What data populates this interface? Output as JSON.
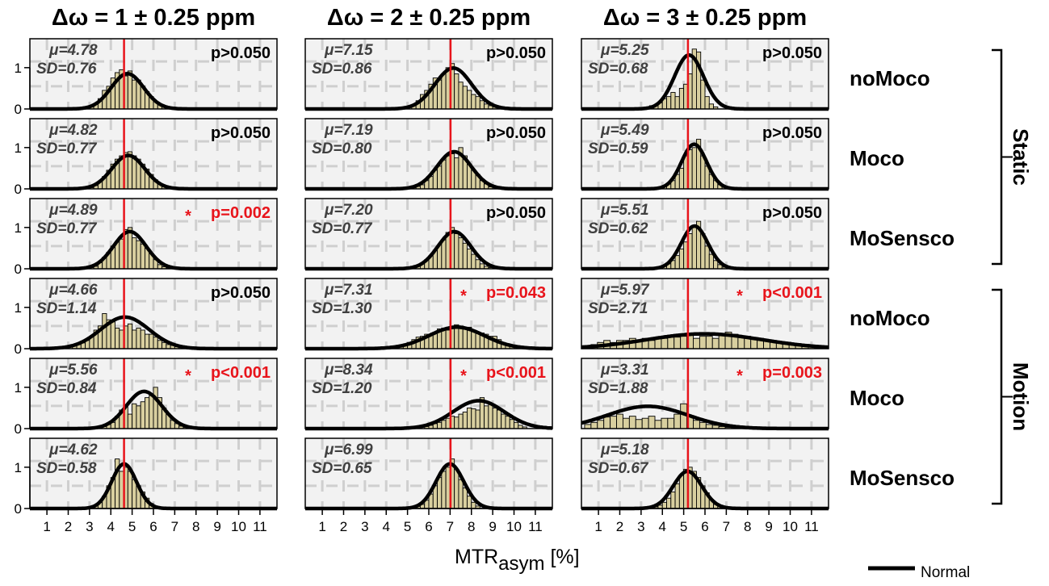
{
  "chart_data": {
    "type": "bar",
    "xlabel_main": "MTR",
    "xlabel_sub": "asym",
    "xlabel_unit": " [%]",
    "legend": "Normal",
    "x_ticks": [
      "1",
      "2",
      "3",
      "4",
      "5",
      "6",
      "7",
      "8",
      "9",
      "10",
      "11"
    ],
    "y_ticks": [
      "0",
      "1"
    ],
    "xlim": [
      0.2,
      11.8
    ],
    "ylim": [
      0,
      1.7
    ],
    "columns": [
      {
        "title": "Δω = 1 ± 0.25 ppm",
        "reference": 4.62
      },
      {
        "title": "Δω = 2 ± 0.25 ppm",
        "reference": 7.02
      },
      {
        "title": "Δω = 3 ± 0.25 ppm",
        "reference": 5.2
      }
    ],
    "rows": [
      {
        "label": "noMoco"
      },
      {
        "label": "Moco"
      },
      {
        "label": "MoSensco"
      },
      {
        "label": "noMoco"
      },
      {
        "label": "Moco"
      },
      {
        "label": "MoSensco"
      }
    ],
    "groups": [
      {
        "label": "Static",
        "rows": [
          0,
          2
        ]
      },
      {
        "label": "Motion",
        "rows": [
          3,
          5
        ]
      }
    ],
    "panels": [
      {
        "col": 0,
        "row": 0,
        "mu_text": "μ=4.78",
        "sd_text": "SD=0.76",
        "mu": 4.78,
        "sd": 0.76,
        "p_text": "p>0.050",
        "significant": false,
        "bins": [
          3.1,
          3.3,
          3.5,
          3.7,
          3.9,
          4.1,
          4.3,
          4.5,
          4.7,
          4.9,
          5.1,
          5.3,
          5.5,
          5.7,
          5.9,
          6.1,
          6.3,
          6.5,
          6.7
        ],
        "heights": [
          0.05,
          0.12,
          0.25,
          0.45,
          0.55,
          0.75,
          0.88,
          0.95,
          0.8,
          0.92,
          0.7,
          0.7,
          0.55,
          0.42,
          0.3,
          0.18,
          0.1,
          0.06,
          0.03
        ]
      },
      {
        "col": 1,
        "row": 0,
        "mu_text": "μ=7.15",
        "sd_text": "SD=0.86",
        "mu": 7.15,
        "sd": 0.86,
        "p_text": "p>0.050",
        "significant": false,
        "bins": [
          5.1,
          5.3,
          5.5,
          5.7,
          5.9,
          6.1,
          6.3,
          6.5,
          6.7,
          6.9,
          7.1,
          7.3,
          7.5,
          7.7,
          7.9,
          8.1,
          8.3,
          8.5,
          8.7,
          8.9,
          9.1
        ],
        "heights": [
          0.05,
          0.1,
          0.2,
          0.35,
          0.45,
          0.6,
          0.75,
          0.7,
          0.85,
          1.0,
          1.1,
          0.85,
          0.65,
          0.55,
          0.45,
          0.35,
          0.3,
          0.2,
          0.12,
          0.08,
          0.05
        ]
      },
      {
        "col": 2,
        "row": 0,
        "mu_text": "μ=5.25",
        "sd_text": "SD=0.68",
        "mu": 5.25,
        "sd": 0.68,
        "p_text": "p>0.050",
        "significant": false,
        "bins": [
          3.3,
          3.5,
          3.7,
          3.9,
          4.1,
          4.3,
          4.5,
          4.7,
          4.9,
          5.1,
          5.3,
          5.5,
          5.7,
          5.9,
          6.1,
          6.3,
          6.5
        ],
        "heights": [
          0.05,
          0.08,
          0.1,
          0.15,
          0.25,
          0.3,
          0.4,
          0.3,
          0.5,
          0.6,
          0.85,
          1.45,
          1.38,
          0.7,
          0.3,
          0.12,
          0.05
        ]
      },
      {
        "col": 0,
        "row": 1,
        "mu_text": "μ=4.82",
        "sd_text": "SD=0.77",
        "mu": 4.82,
        "sd": 0.77,
        "p_text": "p>0.050",
        "significant": false,
        "bins": [
          3.1,
          3.3,
          3.5,
          3.7,
          3.9,
          4.1,
          4.3,
          4.5,
          4.7,
          4.9,
          5.1,
          5.3,
          5.5,
          5.7,
          5.9,
          6.1,
          6.3,
          6.5,
          6.7
        ],
        "heights": [
          0.03,
          0.08,
          0.18,
          0.3,
          0.45,
          0.6,
          0.72,
          0.8,
          0.88,
          0.9,
          0.8,
          0.72,
          0.6,
          0.48,
          0.35,
          0.22,
          0.12,
          0.06,
          0.03
        ]
      },
      {
        "col": 1,
        "row": 1,
        "mu_text": "μ=7.19",
        "sd_text": "SD=0.80",
        "mu": 7.19,
        "sd": 0.8,
        "p_text": "p>0.050",
        "significant": false,
        "bins": [
          5.3,
          5.5,
          5.7,
          5.9,
          6.1,
          6.3,
          6.5,
          6.7,
          6.9,
          7.1,
          7.3,
          7.5,
          7.7,
          7.9,
          8.1,
          8.3,
          8.5,
          8.7,
          8.9
        ],
        "heights": [
          0.03,
          0.06,
          0.1,
          0.2,
          0.3,
          0.45,
          0.55,
          0.7,
          0.8,
          0.85,
          0.75,
          1.0,
          0.8,
          0.6,
          0.45,
          0.35,
          0.2,
          0.12,
          0.05
        ]
      },
      {
        "col": 2,
        "row": 1,
        "mu_text": "μ=5.49",
        "sd_text": "SD=0.59",
        "mu": 5.49,
        "sd": 0.59,
        "p_text": "p>0.050",
        "significant": false,
        "bins": [
          3.9,
          4.1,
          4.3,
          4.5,
          4.7,
          4.9,
          5.1,
          5.3,
          5.5,
          5.7,
          5.9,
          6.1,
          6.3,
          6.5,
          6.7,
          6.9
        ],
        "heights": [
          0.03,
          0.06,
          0.12,
          0.2,
          0.35,
          0.5,
          0.8,
          0.95,
          1.0,
          1.2,
          0.8,
          0.55,
          0.35,
          0.2,
          0.1,
          0.04
        ]
      },
      {
        "col": 0,
        "row": 2,
        "mu_text": "μ=4.89",
        "sd_text": "SD=0.77",
        "mu": 4.89,
        "sd": 0.77,
        "p_text": "p=0.002",
        "significant": true,
        "bins": [
          3.1,
          3.3,
          3.5,
          3.7,
          3.9,
          4.1,
          4.3,
          4.5,
          4.7,
          4.9,
          5.1,
          5.3,
          5.5,
          5.7,
          5.9,
          6.1,
          6.3,
          6.5,
          6.7
        ],
        "heights": [
          0.03,
          0.06,
          0.15,
          0.28,
          0.4,
          0.55,
          0.65,
          0.72,
          0.95,
          1.0,
          0.75,
          0.68,
          0.6,
          0.5,
          0.38,
          0.22,
          0.1,
          0.05,
          0.02
        ]
      },
      {
        "col": 1,
        "row": 2,
        "mu_text": "μ=7.20",
        "sd_text": "SD=0.77",
        "mu": 7.2,
        "sd": 0.77,
        "p_text": "p>0.050",
        "significant": false,
        "bins": [
          5.3,
          5.5,
          5.7,
          5.9,
          6.1,
          6.3,
          6.5,
          6.7,
          6.9,
          7.1,
          7.3,
          7.5,
          7.7,
          7.9,
          8.1,
          8.3,
          8.5,
          8.7,
          8.9
        ],
        "heights": [
          0.03,
          0.06,
          0.12,
          0.22,
          0.32,
          0.45,
          0.58,
          0.7,
          0.88,
          1.0,
          0.85,
          0.75,
          0.62,
          0.48,
          0.35,
          0.22,
          0.12,
          0.06,
          0.03
        ]
      },
      {
        "col": 2,
        "row": 2,
        "mu_text": "μ=5.51",
        "sd_text": "SD=0.62",
        "mu": 5.51,
        "sd": 0.62,
        "p_text": "p>0.050",
        "significant": false,
        "bins": [
          3.9,
          4.1,
          4.3,
          4.5,
          4.7,
          4.9,
          5.1,
          5.3,
          5.5,
          5.7,
          5.9,
          6.1,
          6.3,
          6.5,
          6.7,
          6.9
        ],
        "heights": [
          0.03,
          0.06,
          0.12,
          0.2,
          0.32,
          0.48,
          0.65,
          0.85,
          1.05,
          1.15,
          0.85,
          0.55,
          0.35,
          0.2,
          0.1,
          0.04
        ]
      },
      {
        "col": 0,
        "row": 3,
        "mu_text": "μ=4.66",
        "sd_text": "SD=1.14",
        "mu": 4.66,
        "sd": 1.14,
        "p_text": "p>0.050",
        "significant": false,
        "bins": [
          2.1,
          2.3,
          2.5,
          2.7,
          2.9,
          3.1,
          3.3,
          3.5,
          3.7,
          3.9,
          4.1,
          4.3,
          4.5,
          4.7,
          4.9,
          5.1,
          5.3,
          5.5,
          5.7,
          5.9,
          6.1,
          6.3,
          6.5,
          6.7,
          6.9,
          7.1,
          7.3
        ],
        "heights": [
          0.04,
          0.08,
          0.1,
          0.14,
          0.2,
          0.3,
          0.45,
          0.55,
          0.85,
          0.7,
          0.65,
          0.5,
          0.45,
          0.55,
          0.6,
          0.45,
          0.5,
          0.45,
          0.35,
          0.35,
          0.28,
          0.2,
          0.15,
          0.1,
          0.08,
          0.05,
          0.03
        ]
      },
      {
        "col": 1,
        "row": 3,
        "mu_text": "μ=7.31",
        "sd_text": "SD=1.30",
        "mu": 7.31,
        "sd": 1.3,
        "p_text": "p=0.043",
        "significant": true,
        "bins": [
          4.3,
          4.5,
          4.7,
          4.9,
          5.1,
          5.3,
          5.5,
          5.7,
          5.9,
          6.1,
          6.3,
          6.5,
          6.7,
          6.9,
          7.1,
          7.3,
          7.5,
          7.7,
          7.9,
          8.1,
          8.3,
          8.5,
          8.7,
          8.9,
          9.1,
          9.3,
          9.5,
          9.7,
          9.9,
          10.1
        ],
        "heights": [
          0.03,
          0.05,
          0.08,
          0.1,
          0.15,
          0.22,
          0.28,
          0.3,
          0.35,
          0.35,
          0.4,
          0.48,
          0.5,
          0.45,
          0.55,
          0.58,
          0.55,
          0.5,
          0.52,
          0.45,
          0.4,
          0.38,
          0.35,
          0.3,
          0.3,
          0.22,
          0.15,
          0.1,
          0.06,
          0.03
        ]
      },
      {
        "col": 2,
        "row": 3,
        "mu_text": "μ=5.97",
        "sd_text": "SD=2.71",
        "mu": 5.97,
        "sd": 2.71,
        "p_text": "p<0.001",
        "significant": true,
        "bins": [
          0.5,
          0.8,
          1.1,
          1.4,
          1.7,
          2.0,
          2.3,
          2.6,
          2.9,
          3.2,
          3.5,
          3.8,
          4.1,
          4.4,
          4.7,
          5.0,
          5.3,
          5.6,
          5.9,
          6.2,
          6.5,
          6.8,
          7.1,
          7.4,
          7.7,
          8.0,
          8.3,
          8.6,
          8.9,
          9.2,
          9.5,
          9.8,
          10.1,
          10.4,
          10.7,
          11.0
        ],
        "heights": [
          0.05,
          0.1,
          0.15,
          0.2,
          0.15,
          0.2,
          0.2,
          0.25,
          0.2,
          0.25,
          0.2,
          0.25,
          0.25,
          0.3,
          0.28,
          0.3,
          0.35,
          0.25,
          0.3,
          0.3,
          0.25,
          0.35,
          0.4,
          0.35,
          0.3,
          0.3,
          0.25,
          0.25,
          0.2,
          0.2,
          0.15,
          0.15,
          0.1,
          0.1,
          0.06,
          0.04
        ]
      },
      {
        "col": 0,
        "row": 4,
        "mu_text": "μ=5.56",
        "sd_text": "SD=0.84",
        "mu": 5.56,
        "sd": 0.84,
        "p_text": "p<0.001",
        "significant": true,
        "bins": [
          3.7,
          3.9,
          4.1,
          4.3,
          4.5,
          4.7,
          4.9,
          5.1,
          5.3,
          5.5,
          5.7,
          5.9,
          6.1,
          6.3,
          6.5,
          6.7,
          6.9,
          7.1,
          7.3,
          7.5
        ],
        "heights": [
          0.05,
          0.1,
          0.15,
          0.3,
          0.45,
          0.55,
          0.35,
          0.6,
          0.55,
          0.65,
          0.75,
          0.8,
          1.0,
          0.75,
          0.5,
          0.35,
          0.2,
          0.12,
          0.06,
          0.03
        ]
      },
      {
        "col": 1,
        "row": 4,
        "mu_text": "μ=8.34",
        "sd_text": "SD=1.20",
        "mu": 8.34,
        "sd": 1.2,
        "p_text": "p<0.001",
        "significant": true,
        "bins": [
          5.9,
          6.1,
          6.3,
          6.5,
          6.7,
          6.9,
          7.1,
          7.3,
          7.5,
          7.7,
          7.9,
          8.1,
          8.3,
          8.5,
          8.7,
          8.9,
          9.1,
          9.3,
          9.5,
          9.7,
          9.9,
          10.1,
          10.3,
          10.5
        ],
        "heights": [
          0.05,
          0.08,
          0.12,
          0.15,
          0.2,
          0.25,
          0.3,
          0.28,
          0.35,
          0.4,
          0.5,
          0.48,
          0.45,
          0.75,
          0.55,
          0.6,
          0.5,
          0.45,
          0.35,
          0.3,
          0.22,
          0.15,
          0.08,
          0.04
        ]
      },
      {
        "col": 2,
        "row": 4,
        "mu_text": "μ=3.31",
        "sd_text": "SD=1.88",
        "mu": 3.31,
        "sd": 1.88,
        "p_text": "p=0.003",
        "significant": true,
        "bins": [
          0.5,
          0.8,
          1.1,
          1.4,
          1.7,
          2.0,
          2.3,
          2.6,
          2.9,
          3.2,
          3.5,
          3.8,
          4.1,
          4.4,
          4.7,
          5.0,
          5.3,
          5.6,
          5.9,
          6.2,
          6.5,
          6.8,
          7.1
        ],
        "heights": [
          0.1,
          0.15,
          0.2,
          0.28,
          0.3,
          0.35,
          0.25,
          0.3,
          0.22,
          0.25,
          0.3,
          0.2,
          0.25,
          0.25,
          0.35,
          0.6,
          0.3,
          0.2,
          0.15,
          0.1,
          0.08,
          0.05,
          0.03
        ]
      },
      {
        "col": 0,
        "row": 5,
        "mu_text": "μ=4.62",
        "sd_text": "SD=0.58",
        "mu": 4.62,
        "sd": 0.58,
        "p_text": "",
        "significant": false,
        "bins": [
          3.3,
          3.5,
          3.7,
          3.9,
          4.1,
          4.3,
          4.5,
          4.7,
          4.9,
          5.1,
          5.3,
          5.5,
          5.7,
          5.9,
          6.1
        ],
        "heights": [
          0.06,
          0.15,
          0.3,
          0.55,
          0.75,
          1.2,
          0.9,
          1.0,
          0.9,
          0.7,
          0.55,
          0.4,
          0.25,
          0.12,
          0.05
        ]
      },
      {
        "col": 1,
        "row": 5,
        "mu_text": "μ=6.99",
        "sd_text": "SD=0.65",
        "mu": 6.99,
        "sd": 0.65,
        "p_text": "",
        "significant": false,
        "bins": [
          5.5,
          5.7,
          5.9,
          6.1,
          6.3,
          6.5,
          6.7,
          6.9,
          7.1,
          7.3,
          7.5,
          7.7,
          7.9,
          8.1,
          8.3
        ],
        "heights": [
          0.05,
          0.1,
          0.2,
          0.35,
          0.55,
          0.75,
          0.9,
          1.0,
          1.2,
          0.95,
          0.7,
          0.5,
          0.3,
          0.15,
          0.06
        ]
      },
      {
        "col": 2,
        "row": 5,
        "mu_text": "μ=5.18",
        "sd_text": "SD=0.67",
        "mu": 5.18,
        "sd": 0.67,
        "p_text": "",
        "significant": false,
        "bins": [
          3.7,
          3.9,
          4.1,
          4.3,
          4.5,
          4.7,
          4.9,
          5.1,
          5.3,
          5.5,
          5.7,
          5.9,
          6.1,
          6.3,
          6.5,
          6.7
        ],
        "heights": [
          0.04,
          0.08,
          0.15,
          0.25,
          0.4,
          0.6,
          0.8,
          0.95,
          1.0,
          0.9,
          0.75,
          0.55,
          0.38,
          0.22,
          0.1,
          0.05
        ]
      }
    ]
  }
}
